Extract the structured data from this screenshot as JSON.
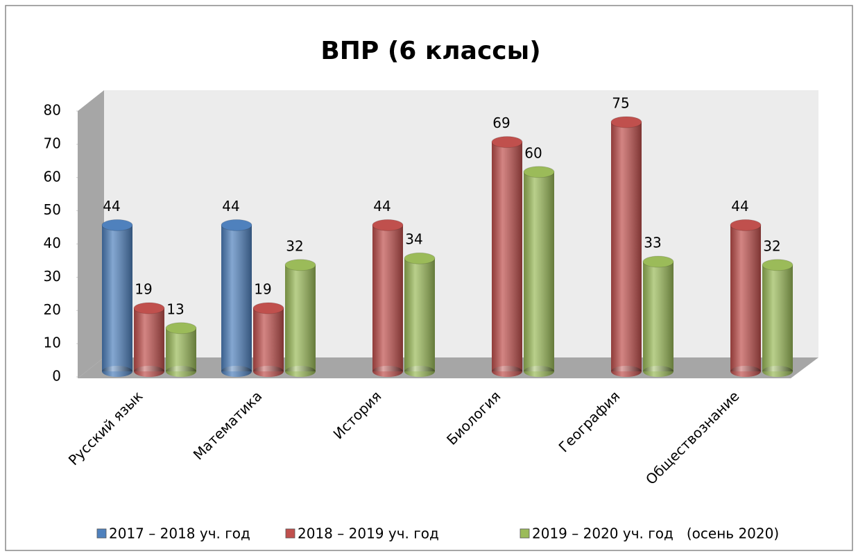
{
  "chart_data": {
    "type": "bar3d",
    "title": "ВПР (6 классы)",
    "categories": [
      "Русский язык",
      "Математика",
      "История",
      "Биология",
      "География",
      "Обществознание"
    ],
    "series": [
      {
        "name": "2017 – 2018 уч. год",
        "color": "#4f81bd",
        "values": [
          44,
          44,
          null,
          null,
          null,
          null
        ]
      },
      {
        "name": "2018 – 2019 уч. год",
        "color": "#c0504d",
        "values": [
          19,
          19,
          44,
          69,
          75,
          44
        ]
      },
      {
        "name": "2019 – 2020 уч. год   (осень 2020)",
        "color": "#9bbb59",
        "values": [
          13,
          32,
          34,
          60,
          33,
          32
        ]
      }
    ],
    "ylim": [
      0,
      80
    ],
    "yticks": [
      0,
      10,
      20,
      30,
      40,
      50,
      60,
      70,
      80
    ],
    "legend": "bottom"
  }
}
